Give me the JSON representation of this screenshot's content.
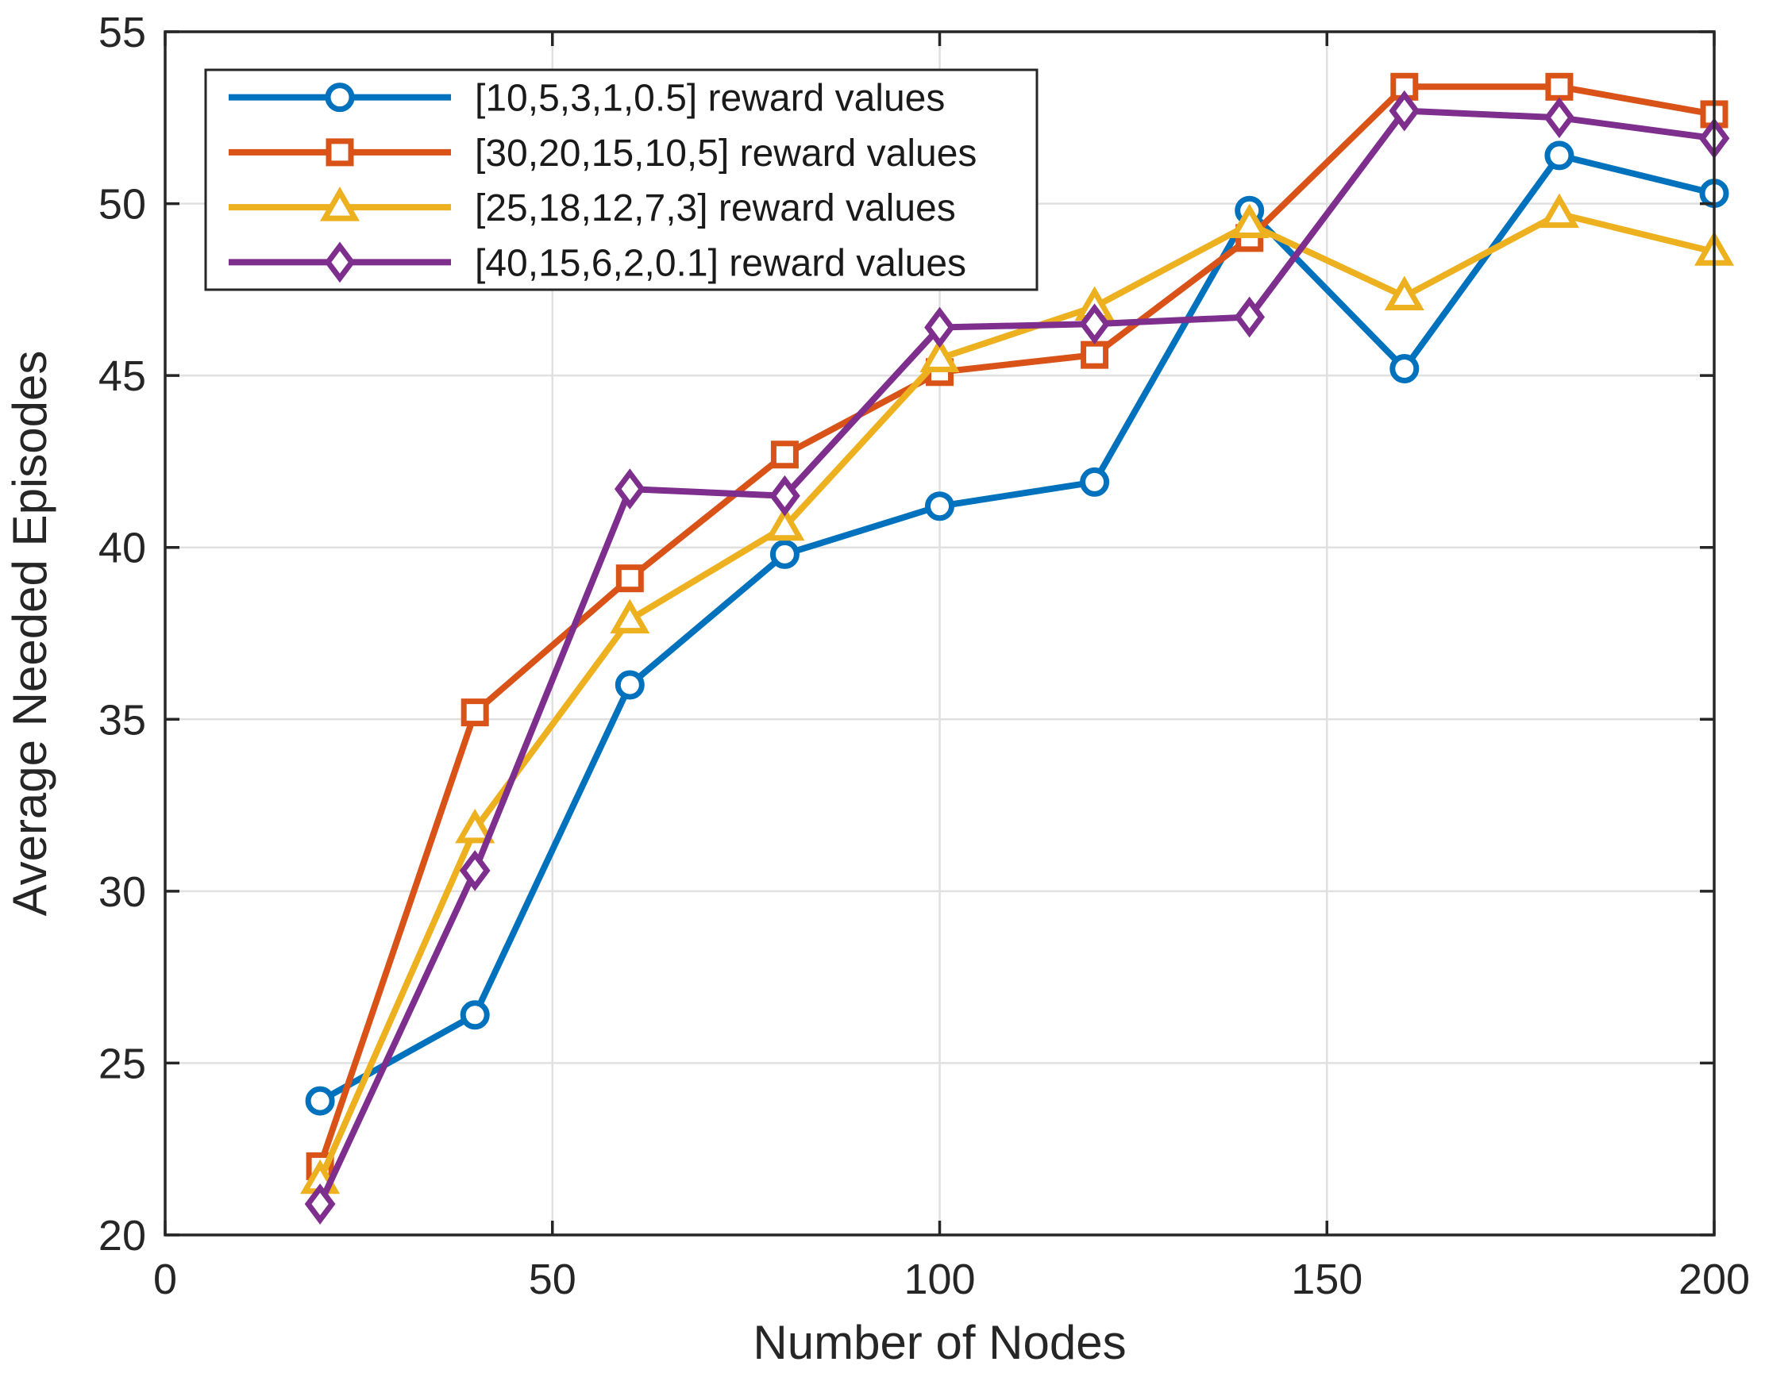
{
  "chart_data": {
    "type": "line",
    "title": "",
    "xlabel": "Number of Nodes",
    "ylabel": "Average Needed Episodes",
    "xlim": [
      0,
      200
    ],
    "ylim": [
      20,
      55
    ],
    "xticks": [
      0,
      50,
      100,
      150,
      200
    ],
    "yticks": [
      20,
      25,
      30,
      35,
      40,
      45,
      50,
      55
    ],
    "grid": true,
    "legend_position": "top-left-inside",
    "background": "#ffffff",
    "axis_color": "#262626",
    "grid_color": "#e0e0e0",
    "x": [
      20,
      40,
      60,
      80,
      100,
      120,
      140,
      160,
      180,
      200
    ],
    "series": [
      {
        "name": "[10,5,3,1,0.5] reward values",
        "color": "#0072BD",
        "marker": "circle",
        "values": [
          23.9,
          26.4,
          36.0,
          39.8,
          41.2,
          41.9,
          49.8,
          45.2,
          51.4,
          50.3
        ]
      },
      {
        "name": "[30,20,15,10,5] reward values",
        "color": "#D95319",
        "marker": "square",
        "values": [
          22.0,
          35.2,
          39.1,
          42.7,
          45.1,
          45.6,
          49.0,
          53.4,
          53.4,
          52.6
        ]
      },
      {
        "name": "[25,18,12,7,3] reward values",
        "color": "#EDB120",
        "marker": "triangle",
        "values": [
          21.6,
          31.8,
          37.9,
          40.6,
          45.5,
          47.0,
          49.4,
          47.3,
          49.7,
          48.6
        ]
      },
      {
        "name": "[40,15,6,2,0.1] reward values",
        "color": "#7E2F8E",
        "marker": "diamond",
        "values": [
          20.9,
          30.6,
          41.7,
          41.5,
          46.4,
          46.5,
          46.7,
          52.7,
          52.5,
          51.9
        ]
      }
    ]
  }
}
